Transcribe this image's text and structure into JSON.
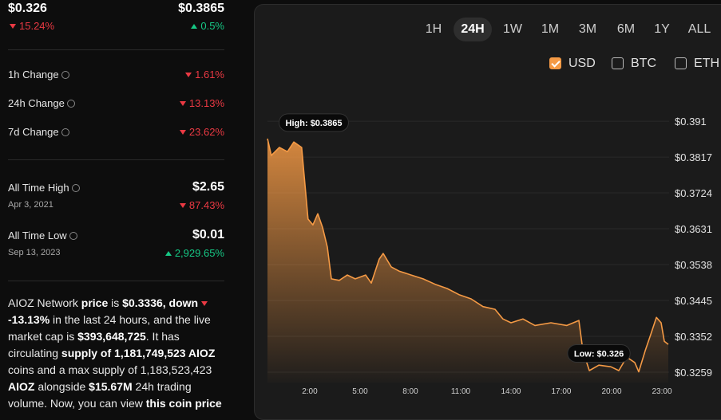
{
  "summary": {
    "low": {
      "price": "$0.326",
      "change": "15.24%"
    },
    "high": {
      "price": "$0.3865",
      "change": "0.5%"
    }
  },
  "changes": [
    {
      "label": "1h Change",
      "value": "1.61%"
    },
    {
      "label": "24h Change",
      "value": "13.13%"
    },
    {
      "label": "7d Change",
      "value": "23.62%"
    }
  ],
  "all_time": [
    {
      "label": "All Time High",
      "date": "Apr 3, 2021",
      "price": "$2.65",
      "change": "87.43%",
      "direction": "down"
    },
    {
      "label": "All Time Low",
      "date": "Sep 13, 2023",
      "price": "$0.01",
      "change": "2,929.65%",
      "direction": "up"
    }
  ],
  "description": [
    {
      "text": "AIOZ Network ",
      "bold": false
    },
    {
      "text": "price",
      "bold": true
    },
    {
      "text": " is ",
      "bold": false
    },
    {
      "text": "$0.3336, down ",
      "bold": true
    },
    {
      "text": "-13.13%",
      "bold": true,
      "arrow": "down"
    },
    {
      "text": " in the last 24 hours, and the live market cap is ",
      "bold": false
    },
    {
      "text": "$393,648,725",
      "bold": true
    },
    {
      "text": ". It has circulating ",
      "bold": false
    },
    {
      "text": "supply of 1,181,749,523 AIOZ",
      "bold": true
    },
    {
      "text": " coins and a max supply of 1,183,523,423 ",
      "bold": false
    },
    {
      "text": "AIOZ",
      "bold": true
    },
    {
      "text": " alongside ",
      "bold": false
    },
    {
      "text": "$15.67M",
      "bold": true
    },
    {
      "text": " 24h trading volume. Now, you can view ",
      "bold": false
    },
    {
      "text": "this coin price",
      "bold": true
    }
  ],
  "ranges": [
    "1H",
    "24H",
    "1W",
    "1M",
    "3M",
    "6M",
    "1Y",
    "ALL"
  ],
  "active_range": 1,
  "currencies": [
    {
      "label": "USD",
      "checked": true
    },
    {
      "label": "BTC",
      "checked": false
    },
    {
      "label": "ETH",
      "checked": false
    }
  ],
  "chart_data": {
    "type": "area",
    "color": "#f59a45",
    "x": [
      -0.52,
      -0.29,
      0.19,
      0.67,
      1.05,
      1.52,
      1.71,
      1.9,
      2.19,
      2.48,
      2.76,
      3.05,
      3.29,
      3.76,
      4.24,
      4.71,
      5.33,
      5.67,
      6.14,
      6.38,
      6.86,
      7.33,
      8.05,
      8.76,
      9.48,
      10.19,
      10.9,
      11.62,
      12.33,
      13.05,
      13.52,
      14.0,
      14.71,
      15.43,
      16.38,
      17.33,
      18.05,
      18.29,
      18.67,
      19.24,
      19.95,
      20.43,
      20.9,
      21.38,
      21.62,
      22.0,
      22.33,
      22.67,
      22.95,
      23.14,
      23.38
    ],
    "values": [
      0.3865,
      0.3821,
      0.3842,
      0.3831,
      0.3856,
      0.3842,
      0.3749,
      0.3656,
      0.3641,
      0.367,
      0.3635,
      0.3583,
      0.3501,
      0.3497,
      0.3511,
      0.3501,
      0.3511,
      0.349,
      0.3552,
      0.3567,
      0.3532,
      0.3521,
      0.3511,
      0.3501,
      0.3487,
      0.3476,
      0.346,
      0.3449,
      0.3429,
      0.3422,
      0.3397,
      0.3387,
      0.3397,
      0.338,
      0.3387,
      0.338,
      0.3393,
      0.3314,
      0.3263,
      0.3277,
      0.3273,
      0.3263,
      0.3298,
      0.3284,
      0.326,
      0.3314,
      0.3356,
      0.3401,
      0.3387,
      0.3339,
      0.3331
    ],
    "xlim": [
      -0.52,
      23.38
    ],
    "xticks": [
      {
        "value": 2,
        "label": "2:00"
      },
      {
        "value": 5,
        "label": "5:00"
      },
      {
        "value": 8,
        "label": "8:00"
      },
      {
        "value": 11,
        "label": "11:00"
      },
      {
        "value": 14,
        "label": "14:00"
      },
      {
        "value": 17,
        "label": "17:00"
      },
      {
        "value": 20,
        "label": "20:00"
      },
      {
        "value": 23,
        "label": "23:00"
      }
    ],
    "ylim": [
      0.3232,
      0.3935
    ],
    "yticks": [
      {
        "value": 0.3259,
        "label": "$0.3259"
      },
      {
        "value": 0.3352,
        "label": "$0.3352"
      },
      {
        "value": 0.3445,
        "label": "$0.3445"
      },
      {
        "value": 0.3538,
        "label": "$0.3538"
      },
      {
        "value": 0.3631,
        "label": "$0.3631"
      },
      {
        "value": 0.3724,
        "label": "$0.3724"
      },
      {
        "value": 0.3817,
        "label": "$0.3817"
      },
      {
        "value": 0.391,
        "label": "$0.391"
      }
    ],
    "grid": true,
    "annotations": [
      {
        "text": "High: $0.3865",
        "x": -0.52,
        "y": 0.3865
      },
      {
        "text": "Low: $0.326",
        "x": 21.62,
        "y": 0.326
      }
    ]
  }
}
